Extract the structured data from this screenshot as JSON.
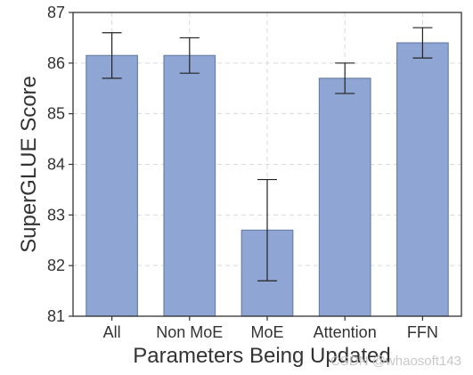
{
  "chart_data": {
    "type": "bar",
    "categories": [
      "All",
      "Non MoE",
      "MoE",
      "Attention",
      "FFN"
    ],
    "values": [
      86.15,
      86.15,
      82.7,
      85.7,
      86.4
    ],
    "error_low": [
      85.7,
      85.8,
      81.7,
      85.4,
      86.1
    ],
    "error_high": [
      86.6,
      86.5,
      83.7,
      86.0,
      86.7
    ],
    "xlabel": "Parameters Being Updated",
    "ylabel": "SuperGLUE Score",
    "ylim": [
      81,
      87
    ],
    "yticks": [
      81,
      82,
      83,
      84,
      85,
      86,
      87
    ],
    "grid": true,
    "bar_color": "#8fa6d4",
    "bar_edge_color": "#6b7fa8",
    "errorbar_color": "#222222"
  },
  "watermark": "CSDN @whaosoft143"
}
